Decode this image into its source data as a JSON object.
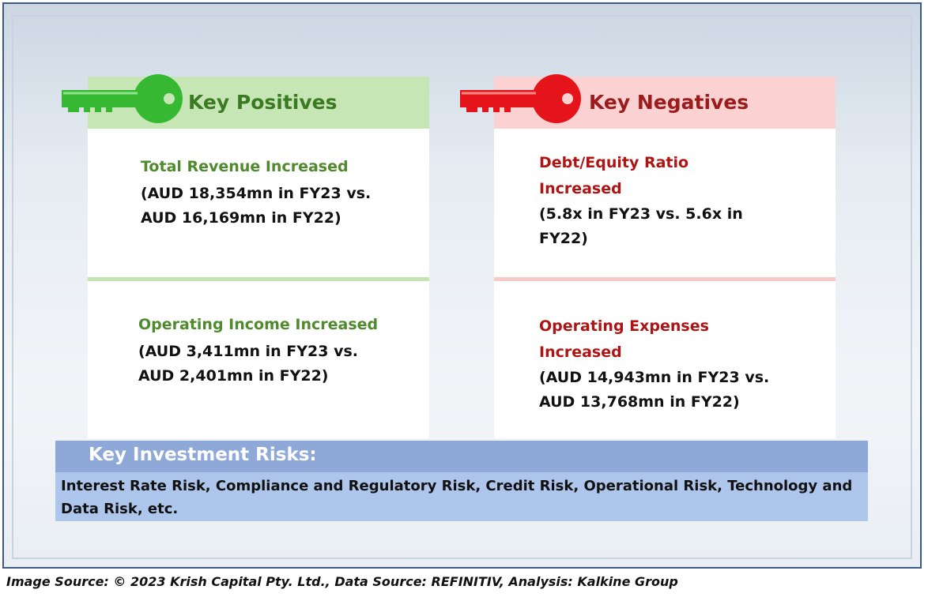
{
  "positives": {
    "header": "Key Positives",
    "items": [
      {
        "title": "Total Revenue Increased",
        "body_lines": [
          "(AUD 18,354mn in FY23 vs.",
          "AUD 16,169mn in FY22)"
        ]
      },
      {
        "title": "Operating Income Increased",
        "body_lines": [
          "(AUD 3,411mn in FY23 vs.",
          "AUD 2,401mn in FY22)"
        ]
      }
    ]
  },
  "negatives": {
    "header": "Key Negatives",
    "items": [
      {
        "title_lines": [
          "Debt/Equity Ratio",
          "Increased"
        ],
        "body_lines": [
          "(5.8x in FY23 vs. 5.6x in",
          "FY22)"
        ]
      },
      {
        "title_lines": [
          "Operating Expenses",
          "Increased"
        ],
        "body_lines": [
          "(AUD 14,943mn in FY23 vs.",
          "AUD 13,768mn in FY22)"
        ]
      }
    ]
  },
  "risks": {
    "header": "Key Investment Risks:",
    "body": "Interest Rate Risk, Compliance and Regulatory Risk, Credit Risk, Operational Risk, Technology and Data Risk, etc."
  },
  "footer": "Image Source: © 2023 Krish Capital Pty. Ltd., Data Source: REFINITIV, Analysis: Kalkine Group",
  "colors": {
    "positive": "#4f8a2d",
    "negative": "#b01313",
    "key_green": "#37b832",
    "key_red": "#e4141a",
    "risk_header": "#8ea9d8",
    "risk_body": "#aec5ec"
  },
  "icons": {
    "positive": "green-key-icon",
    "negative": "red-key-icon"
  }
}
